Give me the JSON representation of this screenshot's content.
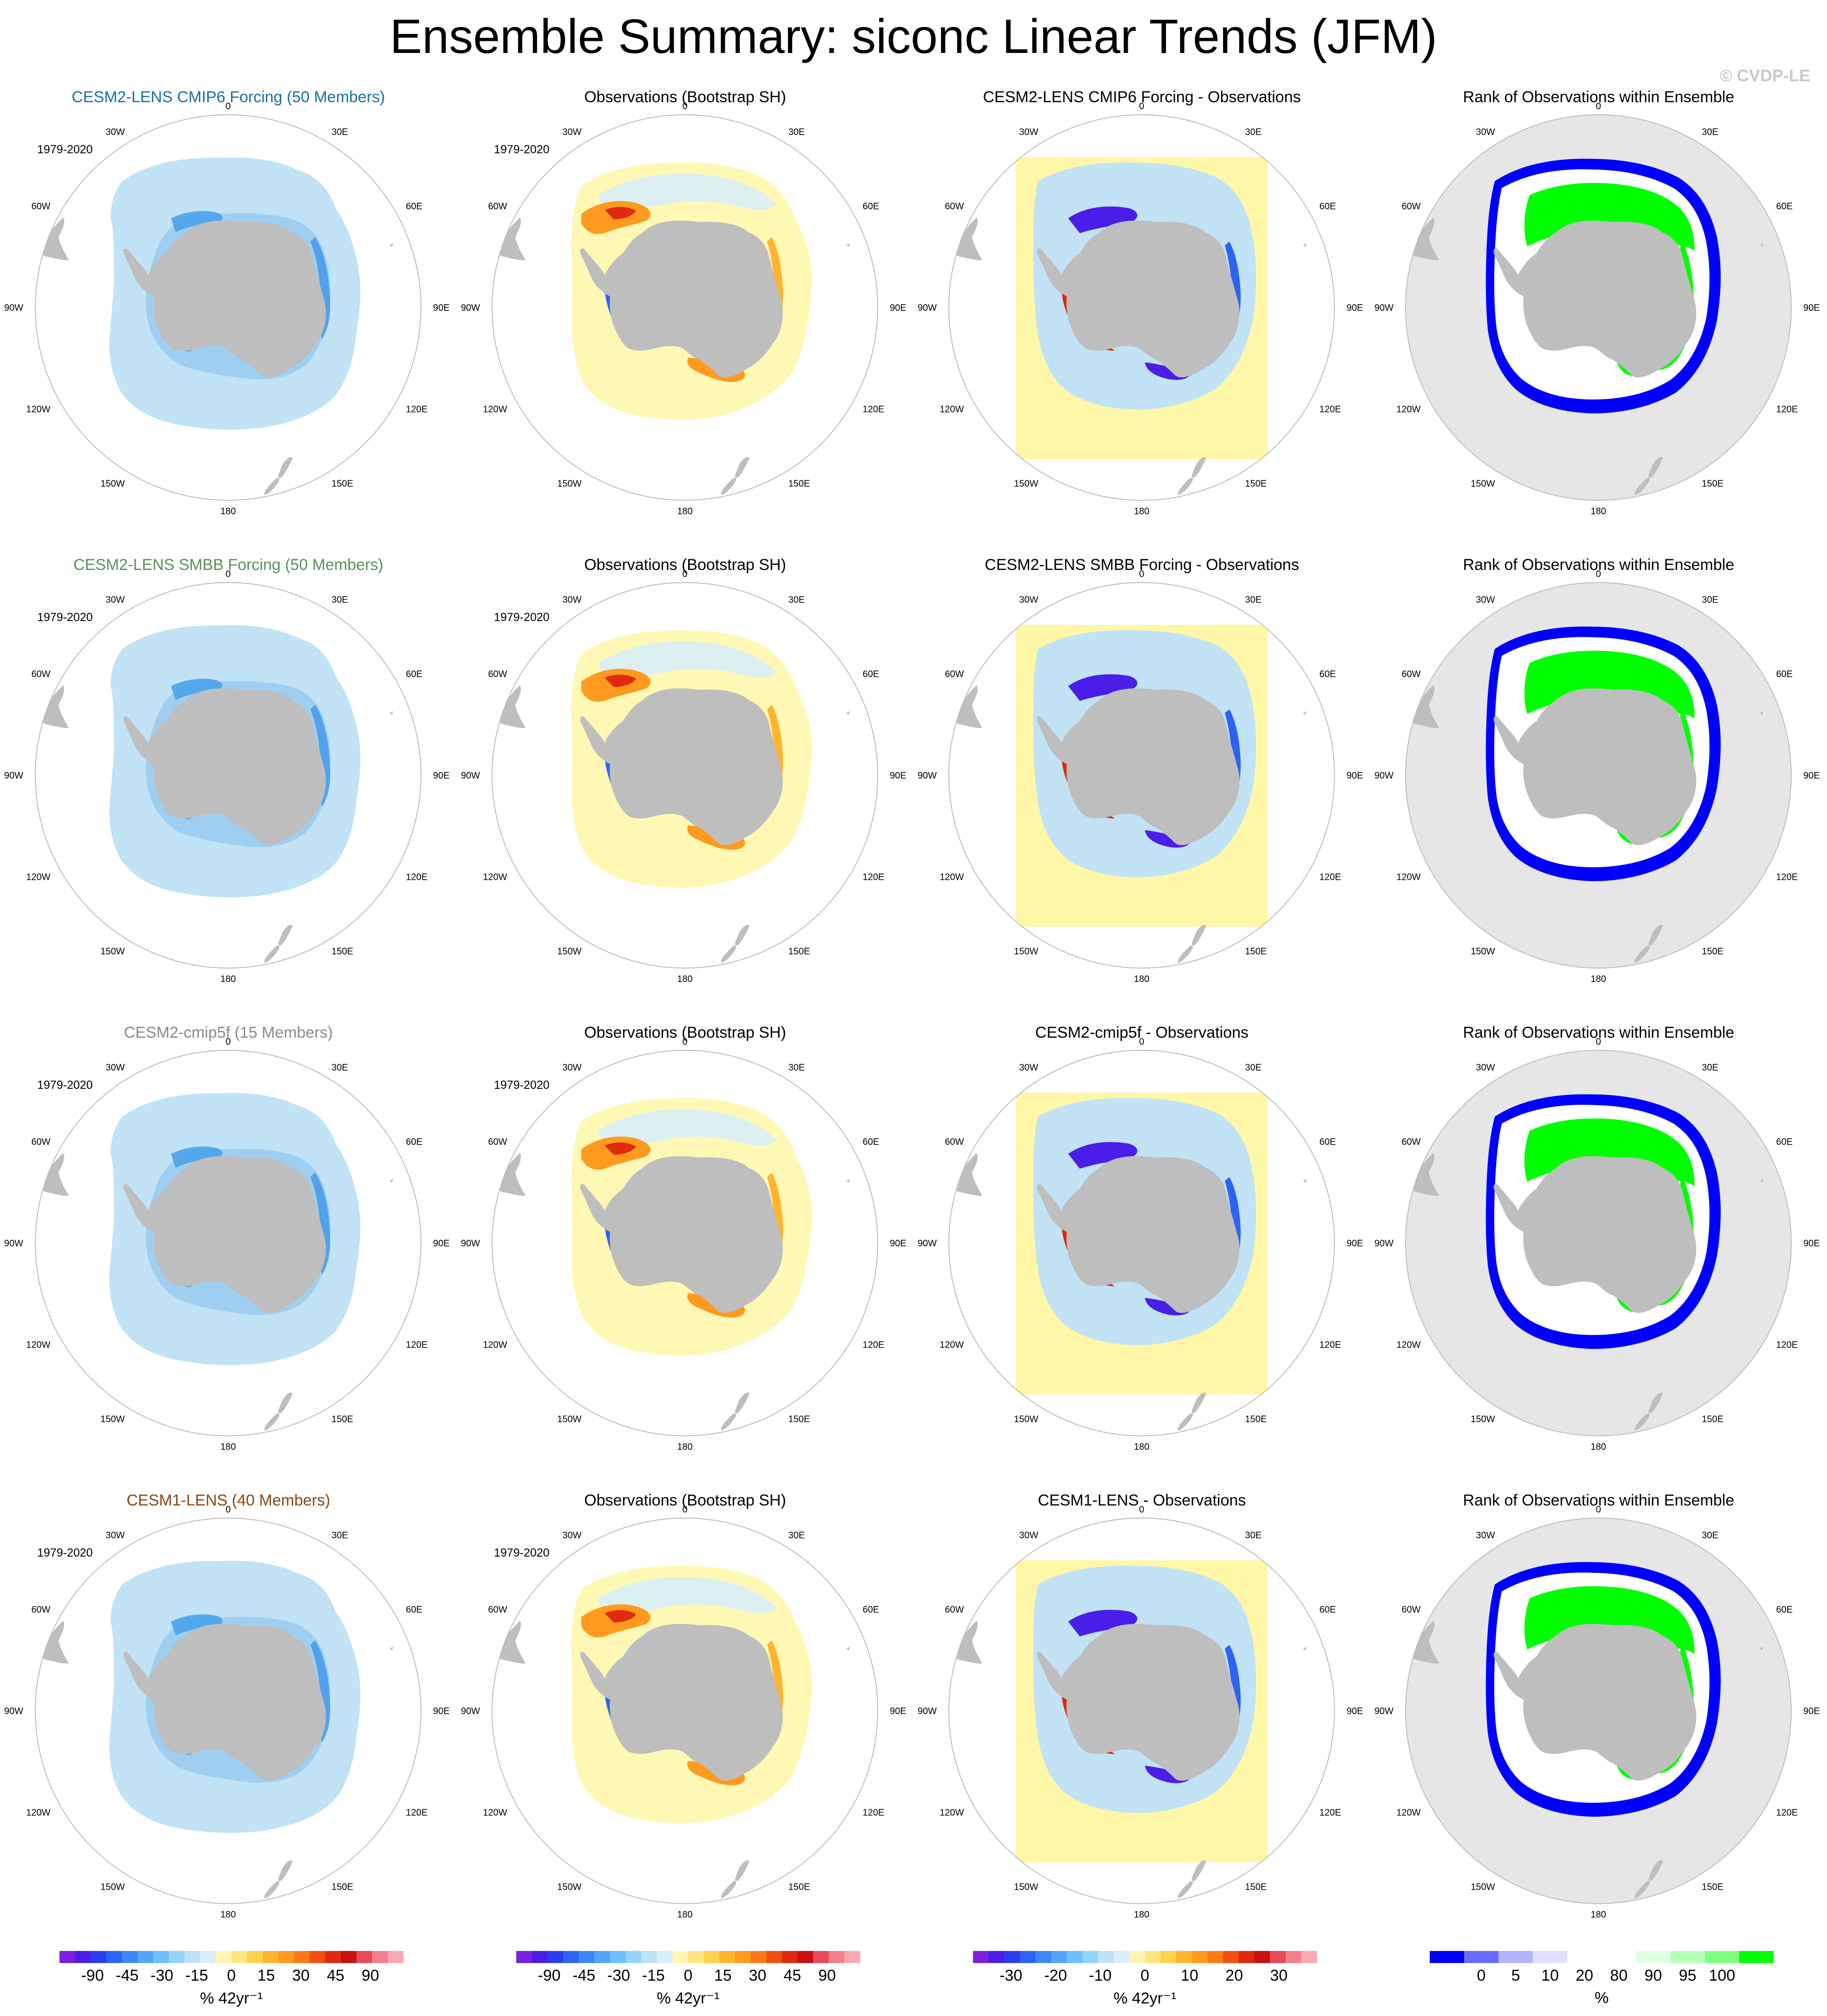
{
  "title": "Ensemble Summary: siconc Linear Trends (JFM)",
  "copyright": "© CVDP-LE",
  "map_labels": {
    "top": "0",
    "bottom": "180",
    "left": [
      "30W",
      "60W",
      "90W",
      "120W",
      "150W"
    ],
    "right": [
      "30E",
      "60E",
      "90E",
      "120E",
      "150E"
    ]
  },
  "rows": [
    {
      "model_title": "CESM2-LENS CMIP6 Forcing (50 Members)",
      "model_color": "#1b6fa0",
      "period": "1979-2020",
      "obs_title": "Observations (Bootstrap SH)",
      "obs_period": "1979-2020",
      "diff_title": "CESM2-LENS CMIP6 Forcing - Observations",
      "rank_title": "Rank of Observations within Ensemble"
    },
    {
      "model_title": "CESM2-LENS SMBB Forcing (50 Members)",
      "model_color": "#5a8f5a",
      "period": "1979-2020",
      "obs_title": "Observations (Bootstrap SH)",
      "obs_period": "1979-2020",
      "diff_title": "CESM2-LENS SMBB Forcing - Observations",
      "rank_title": "Rank of Observations within Ensemble"
    },
    {
      "model_title": "CESM2-cmip5f (15 Members)",
      "model_color": "#8a8a8a",
      "period": "1979-2020",
      "obs_title": "Observations (Bootstrap SH)",
      "obs_period": "1979-2020",
      "diff_title": "CESM2-cmip5f - Observations",
      "rank_title": "Rank of Observations within Ensemble"
    },
    {
      "model_title": "CESM1-LENS (40 Members)",
      "model_color": "#8b4513",
      "period": "1979-2020",
      "obs_title": "Observations (Bootstrap SH)",
      "obs_period": "1979-2020",
      "diff_title": "CESM1-LENS - Observations",
      "rank_title": "Rank of Observations within Ensemble"
    }
  ],
  "colorbars": [
    {
      "name": "model-trend",
      "units": "% 42yr⁻¹",
      "colors": [
        "#7b1fe0",
        "#4a1ee8",
        "#2b3ff0",
        "#2d63f5",
        "#3d86f7",
        "#52a6fa",
        "#6dc0fb",
        "#95d3fa",
        "#bde3f7",
        "#d8eef8",
        "#fff7b3",
        "#ffe680",
        "#ffd24d",
        "#ffb42e",
        "#ff9a1f",
        "#ff7a14",
        "#f5500f",
        "#e02a0e",
        "#c9110f",
        "#e84a5a",
        "#f47f8c",
        "#f9a9b2"
      ],
      "labels": [
        "-90",
        "-45",
        "-30",
        "-15",
        "0",
        "15",
        "30",
        "45",
        "90"
      ]
    },
    {
      "name": "obs-trend",
      "units": "% 42yr⁻¹",
      "colors": [
        "#7b1fe0",
        "#4a1ee8",
        "#2b3ff0",
        "#2d63f5",
        "#3d86f7",
        "#52a6fa",
        "#6dc0fb",
        "#95d3fa",
        "#bde3f7",
        "#d8eef8",
        "#fff7b3",
        "#ffe680",
        "#ffd24d",
        "#ffb42e",
        "#ff9a1f",
        "#ff7a14",
        "#f5500f",
        "#e02a0e",
        "#c9110f",
        "#e84a5a",
        "#f47f8c",
        "#f9a9b2"
      ],
      "labels": [
        "-90",
        "-45",
        "-30",
        "-15",
        "0",
        "15",
        "30",
        "45",
        "90"
      ]
    },
    {
      "name": "difference",
      "units": "% 42yr⁻¹",
      "colors": [
        "#7b1fe0",
        "#4a1ee8",
        "#2b3ff0",
        "#2d63f5",
        "#3d86f7",
        "#52a6fa",
        "#6dc0fb",
        "#95d3fa",
        "#bde3f7",
        "#d8eef8",
        "#fff7b3",
        "#ffe680",
        "#ffd24d",
        "#ffb42e",
        "#ff9a1f",
        "#ff7a14",
        "#f5500f",
        "#e02a0e",
        "#c9110f",
        "#e84a5a",
        "#f47f8c",
        "#f9a9b2"
      ],
      "labels": [
        "-30",
        "-20",
        "-10",
        "0",
        "10",
        "20",
        "30"
      ]
    },
    {
      "name": "rank",
      "units": "%",
      "colors": [
        "#0000ff",
        "#6b6bff",
        "#b3b3ff",
        "#e0e0ff",
        "#ffffff",
        "#ffffff",
        "#e0ffe0",
        "#b8ffb8",
        "#7dff7d",
        "#00ff00"
      ],
      "labels": [
        "0",
        "5",
        "10",
        "20",
        "80",
        "90",
        "95",
        "100"
      ]
    }
  ],
  "colors": {
    "land": "#bebebe",
    "rank_background": "#e6e6e6",
    "light_blue": "#c2e2f5",
    "yellow": "#fff7a8"
  }
}
